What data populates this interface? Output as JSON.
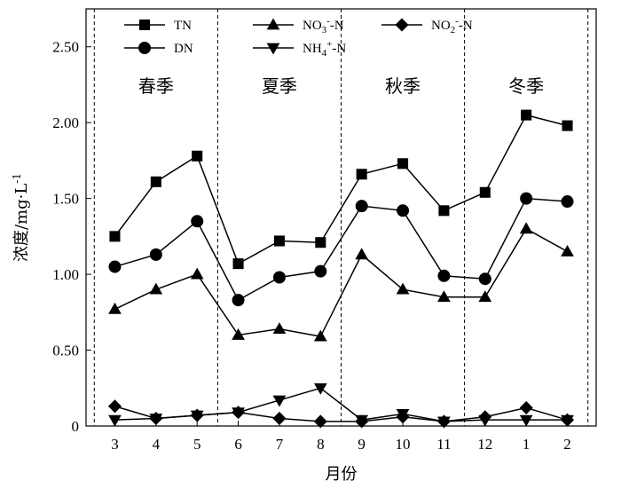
{
  "chart_data": {
    "type": "line",
    "xlabel": "月份",
    "ylabel": "浓度/mg·L",
    "ylabel_sup": "-1",
    "ylim": [
      0,
      2.75
    ],
    "yticks": [
      "0",
      "0.50",
      "1.00",
      "1.50",
      "2.00",
      "2.50"
    ],
    "ytick_values": [
      0,
      0.5,
      1.0,
      1.5,
      2.0,
      2.5
    ],
    "categories": [
      "3",
      "4",
      "5",
      "6",
      "7",
      "8",
      "9",
      "10",
      "11",
      "12",
      "1",
      "2"
    ],
    "seasons": [
      {
        "label": "春季",
        "from": 0,
        "to": 2
      },
      {
        "label": "夏季",
        "from": 3,
        "to": 5
      },
      {
        "label": "秋季",
        "from": 6,
        "to": 8
      },
      {
        "label": "冬季",
        "from": 9,
        "to": 11
      }
    ],
    "legend_placement": "top",
    "grid": false,
    "series": [
      {
        "name": "TN",
        "legend": {
          "main": "TN",
          "sub": "",
          "sup": "",
          "tail": ""
        },
        "marker": "square",
        "values": [
          1.25,
          1.61,
          1.78,
          1.07,
          1.22,
          1.21,
          1.66,
          1.73,
          1.42,
          1.54,
          2.05,
          1.98
        ]
      },
      {
        "name": "DN",
        "legend": {
          "main": "DN",
          "sub": "",
          "sup": "",
          "tail": ""
        },
        "marker": "circle",
        "values": [
          1.05,
          1.13,
          1.35,
          0.83,
          0.98,
          1.02,
          1.45,
          1.42,
          0.99,
          0.97,
          1.5,
          1.48
        ]
      },
      {
        "name": "NO3--N",
        "legend": {
          "main": "NO",
          "sub": "3",
          "sup": "-",
          "tail": "-N"
        },
        "marker": "triangle-up",
        "values": [
          0.77,
          0.9,
          1.0,
          0.6,
          0.64,
          0.59,
          1.13,
          0.9,
          0.85,
          0.85,
          1.3,
          1.15
        ]
      },
      {
        "name": "NH4+-N",
        "legend": {
          "main": "NH",
          "sub": "4",
          "sup": "+",
          "tail": "-N"
        },
        "marker": "triangle-down",
        "values": [
          0.04,
          0.05,
          0.07,
          0.09,
          0.17,
          0.25,
          0.04,
          0.08,
          0.03,
          0.04,
          0.04,
          0.04
        ]
      },
      {
        "name": "NO2--N",
        "legend": {
          "main": "NO",
          "sub": "2",
          "sup": "-",
          "tail": "-N"
        },
        "marker": "diamond",
        "values": [
          0.13,
          0.05,
          0.07,
          0.09,
          0.05,
          0.03,
          0.03,
          0.06,
          0.03,
          0.06,
          0.12,
          0.04
        ]
      }
    ]
  }
}
